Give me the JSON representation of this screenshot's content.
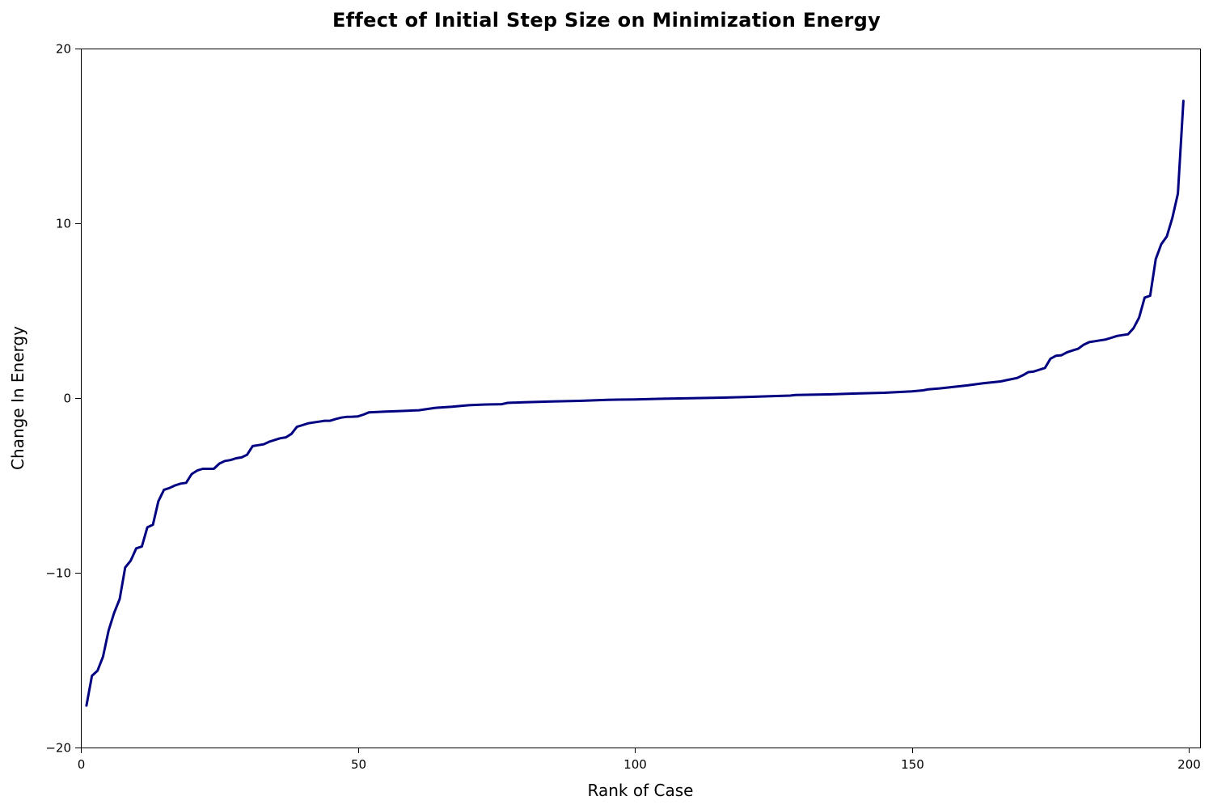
{
  "chart_data": {
    "type": "line",
    "title": "Effect of Initial Step Size on Minimization Energy",
    "xlabel": "Rank of Case",
    "ylabel": "Change In Energy",
    "xlim": [
      0,
      202
    ],
    "ylim": [
      -20,
      20
    ],
    "xticks": [
      0,
      50,
      100,
      150,
      200
    ],
    "yticks": [
      -20,
      -10,
      0,
      10,
      20
    ],
    "xtick_labels": [
      "0",
      "50",
      "100",
      "150",
      "200"
    ],
    "ytick_labels": [
      "−20",
      "−10",
      "0",
      "10",
      "20"
    ],
    "grid": false,
    "line_color": "#000080",
    "series": [
      {
        "x": [
          1,
          2,
          3,
          4,
          5,
          6,
          7,
          8,
          9,
          10,
          11,
          12,
          13,
          14,
          15,
          16,
          17,
          18,
          19,
          20,
          21,
          22,
          23,
          24,
          25,
          26,
          27,
          28,
          29,
          30,
          31,
          32,
          33,
          34,
          35,
          36,
          37,
          38,
          39,
          40,
          41,
          42,
          43,
          44,
          45,
          46,
          47,
          48,
          49,
          50,
          51,
          52,
          55,
          58,
          61,
          64,
          67,
          70,
          73,
          76,
          77,
          80,
          85,
          90,
          95,
          100,
          105,
          110,
          115,
          120,
          125,
          128,
          129,
          135,
          140,
          145,
          150,
          152,
          153,
          155,
          157,
          160,
          163,
          166,
          167,
          169,
          170,
          171,
          172,
          173,
          174,
          175,
          176,
          177,
          178,
          179,
          180,
          181,
          182,
          183,
          184,
          185,
          186,
          187,
          188,
          189,
          190,
          191,
          192,
          193,
          194,
          195,
          196,
          197,
          198,
          199
        ],
        "y": [
          -17.6,
          -15.9,
          -15.6,
          -14.8,
          -13.3,
          -12.3,
          -11.5,
          -9.7,
          -9.3,
          -8.6,
          -8.5,
          -7.4,
          -7.25,
          -5.9,
          -5.25,
          -5.15,
          -5.0,
          -4.9,
          -4.85,
          -4.35,
          -4.15,
          -4.05,
          -4.05,
          -4.05,
          -3.75,
          -3.6,
          -3.55,
          -3.45,
          -3.4,
          -3.25,
          -2.75,
          -2.7,
          -2.65,
          -2.5,
          -2.4,
          -2.3,
          -2.25,
          -2.05,
          -1.65,
          -1.55,
          -1.45,
          -1.4,
          -1.35,
          -1.3,
          -1.3,
          -1.2,
          -1.12,
          -1.08,
          -1.07,
          -1.05,
          -0.95,
          -0.82,
          -0.78,
          -0.74,
          -0.7,
          -0.56,
          -0.5,
          -0.41,
          -0.37,
          -0.35,
          -0.28,
          -0.24,
          -0.2,
          -0.16,
          -0.1,
          -0.08,
          -0.04,
          -0.01,
          0.02,
          0.06,
          0.11,
          0.14,
          0.17,
          0.21,
          0.26,
          0.3,
          0.38,
          0.44,
          0.5,
          0.55,
          0.62,
          0.72,
          0.85,
          0.95,
          1.02,
          1.15,
          1.3,
          1.48,
          1.52,
          1.62,
          1.72,
          2.25,
          2.42,
          2.45,
          2.62,
          2.72,
          2.82,
          3.05,
          3.2,
          3.25,
          3.3,
          3.35,
          3.45,
          3.55,
          3.6,
          3.65,
          4.0,
          4.6,
          5.75,
          5.85,
          7.95,
          8.8,
          9.25,
          10.3,
          11.7,
          17.0
        ]
      }
    ]
  }
}
